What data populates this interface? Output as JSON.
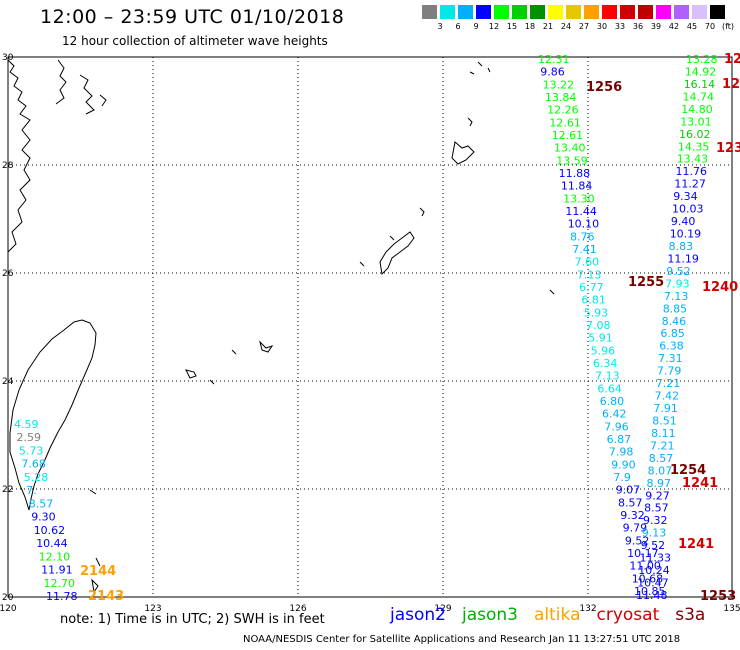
{
  "header": {
    "title": "12:00 – 23:59 UTC 01/10/2018",
    "subtitle": "12 hour collection of altimeter wave heights"
  },
  "color_scale": {
    "labels": [
      "3",
      "6",
      "9",
      "12",
      "15",
      "18",
      "21",
      "24",
      "27",
      "30",
      "33",
      "36",
      "39",
      "42",
      "45",
      "70",
      "(ft)"
    ],
    "colors": [
      "#7f7f7f",
      "#00e8e8",
      "#00b0ff",
      "#0000ff",
      "#00ff00",
      "#00d000",
      "#009000",
      "#ffff00",
      "#e6c800",
      "#ffa000",
      "#ff0000",
      "#d00000",
      "#c00000",
      "#ff00ff",
      "#b060ff",
      "#d8c0ff",
      "#000000"
    ]
  },
  "axes": {
    "x_ticks": [
      "120",
      "123",
      "126",
      "129",
      "132",
      "135"
    ],
    "y_ticks": [
      "30",
      "28",
      "26",
      "24",
      "22",
      "20"
    ]
  },
  "satellites": [
    {
      "name": "jason2",
      "color": "#0000ff"
    },
    {
      "name": "jason3",
      "color": "#00b000"
    },
    {
      "name": "altika",
      "color": "#ffa000"
    },
    {
      "name": "cryosat",
      "color": "#d00000"
    },
    {
      "name": "s3a",
      "color": "#7a0000"
    }
  ],
  "note": "note: 1) Time is in UTC; 2) SWH is in feet",
  "footer": "NOAA/NESDIS Center for Satellite Applications and Research    Jan 11 13:27:51 UTC 2018",
  "tracks": {
    "track_a": {
      "labels": [
        "12.31",
        "9.86",
        "13.22",
        "13.84",
        "12.26",
        "12.61",
        "12.61",
        "13.40",
        "13.59",
        "11.88",
        "11.84",
        "13.30",
        "11.44",
        "10.10",
        "8.76",
        "7.41",
        "7.60",
        "7.13",
        "6.77",
        "6.81",
        "5.93",
        "7.08",
        "5.91",
        "5.96",
        "6.34",
        "7.13",
        "6.64",
        "6.80",
        "6.42",
        "7.96",
        "6.87",
        "7.98",
        "9.90",
        "7.9",
        "9.07",
        "8.57",
        "9.32",
        "9.79",
        "9.52",
        "10.17",
        "11.00",
        "10.68",
        "10.85"
      ],
      "colors": [
        "#00ff00",
        "#0000ff",
        "#00ff00",
        "#00ff00",
        "#00ff00",
        "#00ff00",
        "#00ff00",
        "#00ff00",
        "#00ff00",
        "#0000ff",
        "#0000ff",
        "#00ff00",
        "#0000ff",
        "#0000ff",
        "#00b0ff",
        "#00b0ff",
        "#00e8e8",
        "#00e8e8",
        "#00e8e8",
        "#00e8e8",
        "#00e8e8",
        "#00e8e8",
        "#00e8e8",
        "#00e8e8",
        "#00e8e8",
        "#00e8e8",
        "#00e8e8",
        "#00b0ff",
        "#00b0ff",
        "#00b0ff",
        "#00b0ff",
        "#00b0ff",
        "#00b0ff",
        "#00b0ff",
        "#0000ff",
        "#0000ff",
        "#0000ff",
        "#0000ff",
        "#0000ff",
        "#0000ff",
        "#0000ff",
        "#0000ff",
        "#0000ff"
      ]
    },
    "track_b": {
      "labels": [
        "13.28",
        "14.92",
        "16.14",
        "14.74",
        "14.80",
        "13.01",
        "16.02",
        "14.35",
        "13.43",
        "11.76",
        "11.27",
        "9.34",
        "10.03",
        "9.40",
        "10.19",
        "8.83",
        "11.19",
        "9.52",
        "7.93",
        "7.13",
        "8.85",
        "8.46",
        "6.85",
        "6.38",
        "7.31",
        "7.79",
        "7.21",
        "7.42",
        "7.91",
        "8.51",
        "8.11",
        "7.21",
        "8.57",
        "8.07",
        "8.97",
        "9.27",
        "8.57",
        "9.32",
        "9.13",
        "9.52",
        "11.33",
        "10.24",
        "10.47",
        "11.48"
      ],
      "colors": [
        "#00ff00",
        "#00ff00",
        "#00d000",
        "#00ff00",
        "#00ff00",
        "#00ff00",
        "#00d000",
        "#00ff00",
        "#00ff00",
        "#0000ff",
        "#0000ff",
        "#0000ff",
        "#0000ff",
        "#0000ff",
        "#0000ff",
        "#00b0ff",
        "#0000ff",
        "#00b0ff",
        "#00e8e8",
        "#00b0ff",
        "#00b0ff",
        "#00b0ff",
        "#00b0ff",
        "#00b0ff",
        "#00b0ff",
        "#00b0ff",
        "#00b0ff",
        "#00b0ff",
        "#00b0ff",
        "#00b0ff",
        "#00b0ff",
        "#00b0ff",
        "#00b0ff",
        "#00b0ff",
        "#00b0ff",
        "#0000ff",
        "#0000ff",
        "#0000ff",
        "#00b0ff",
        "#0000ff",
        "#0000ff",
        "#0000ff",
        "#0000ff",
        "#0000ff"
      ]
    },
    "track_c": {
      "labels": [
        "4.59",
        "2.59",
        "5.73",
        "7.68",
        "5.28",
        "7.",
        "8.57",
        "9.30",
        "10.62",
        "10.44",
        "12.10",
        "11.91",
        "12.70",
        "11.78"
      ],
      "colors": [
        "#00e8e8",
        "#7f7f7f",
        "#00e8e8",
        "#00b0ff",
        "#00e8e8",
        "#00b0ff",
        "#00b0ff",
        "#0000ff",
        "#0000ff",
        "#0000ff",
        "#00ff00",
        "#0000ff",
        "#00ff00",
        "#0000ff"
      ]
    }
  },
  "pass_labels": [
    {
      "text": "1256",
      "color": "#7a0000"
    },
    {
      "text": "12",
      "color": "#d00000"
    },
    {
      "text": "12",
      "color": "#d00000"
    },
    {
      "text": "123",
      "color": "#d00000"
    },
    {
      "text": "1255",
      "color": "#7a0000"
    },
    {
      "text": "1240",
      "color": "#d00000"
    },
    {
      "text": "1254",
      "color": "#7a0000"
    },
    {
      "text": "1241",
      "color": "#d00000"
    },
    {
      "text": "1241",
      "color": "#d00000"
    },
    {
      "text": "1253",
      "color": "#7a0000"
    },
    {
      "text": "2144",
      "color": "#ffa000"
    },
    {
      "text": "2143",
      "color": "#ffa000"
    }
  ]
}
